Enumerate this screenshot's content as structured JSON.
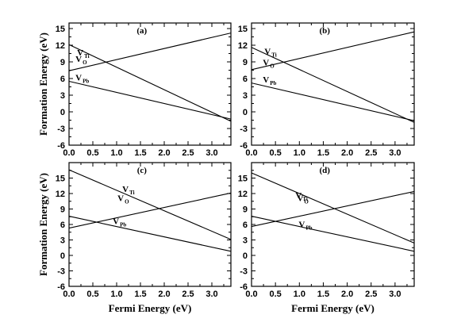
{
  "chart_data": [
    {
      "type": "line",
      "panel_label": "(a)",
      "xlabel": "",
      "ylabel": "Formation Energy (eV)",
      "xlim": [
        0,
        3.4
      ],
      "ylim": [
        -6,
        16
      ],
      "x_ticks": [
        "0.0",
        "0.5",
        "1.0",
        "1.5",
        "2.0",
        "2.5",
        "3.0"
      ],
      "y_ticks": [
        "-6",
        "-3",
        "0",
        "3",
        "6",
        "9",
        "12",
        "15"
      ],
      "grid": false,
      "series": [
        {
          "name": "V",
          "sub": "Ti",
          "x": [
            0,
            3.4
          ],
          "y": [
            12.1,
            -1.7
          ]
        },
        {
          "name": "V",
          "sub": "O",
          "x": [
            0,
            3.4
          ],
          "y": [
            7.4,
            14.2
          ]
        },
        {
          "name": "V",
          "sub": "Pb",
          "x": [
            0,
            3.4
          ],
          "y": [
            5.5,
            -1.3
          ]
        }
      ]
    },
    {
      "type": "line",
      "panel_label": "(b)",
      "xlabel": "",
      "ylabel": "",
      "xlim": [
        0,
        3.4
      ],
      "ylim": [
        -6,
        16
      ],
      "x_ticks": [
        "0.0",
        "0.5",
        "1.0",
        "1.5",
        "2.0",
        "2.5",
        "3.0"
      ],
      "y_ticks": [
        "-6",
        "-3",
        "0",
        "3",
        "6",
        "9",
        "12",
        "15"
      ],
      "grid": false,
      "series": [
        {
          "name": "V",
          "sub": "Ti",
          "x": [
            0,
            3.4
          ],
          "y": [
            11.6,
            -1.9
          ]
        },
        {
          "name": "V",
          "sub": "O",
          "x": [
            0,
            3.4
          ],
          "y": [
            7.6,
            14.4
          ]
        },
        {
          "name": "V",
          "sub": "Pb",
          "x": [
            0,
            3.4
          ],
          "y": [
            5.2,
            -1.6
          ]
        }
      ]
    },
    {
      "type": "line",
      "panel_label": "(c)",
      "xlabel": "Fermi Energy (eV)",
      "ylabel": "Formation Energy (eV)",
      "xlim": [
        0,
        3.4
      ],
      "ylim": [
        -6,
        18
      ],
      "x_ticks": [
        "0.0",
        "0.5",
        "1.0",
        "1.5",
        "2.0",
        "2.5",
        "3.0"
      ],
      "y_ticks": [
        "-6",
        "-3",
        "0",
        "3",
        "6",
        "9",
        "12",
        "15"
      ],
      "grid": false,
      "series": [
        {
          "name": "V",
          "sub": "Ti",
          "x": [
            0,
            3.4
          ],
          "y": [
            16.6,
            3.1
          ]
        },
        {
          "name": "V",
          "sub": "O",
          "x": [
            0,
            3.4
          ],
          "y": [
            5.3,
            12.1
          ]
        },
        {
          "name": "V",
          "sub": "Pb",
          "x": [
            0,
            3.4
          ],
          "y": [
            7.6,
            0.8
          ]
        }
      ]
    },
    {
      "type": "line",
      "panel_label": "(d)",
      "xlabel": "Fermi Energy (eV)",
      "ylabel": "",
      "xlim": [
        0,
        3.4
      ],
      "ylim": [
        -6,
        18
      ],
      "x_ticks": [
        "0.0",
        "0.5",
        "1.0",
        "1.5",
        "2.0",
        "2.5",
        "3.0"
      ],
      "y_ticks": [
        "-6",
        "-3",
        "0",
        "3",
        "6",
        "9",
        "12",
        "15"
      ],
      "grid": false,
      "series": [
        {
          "name": "V",
          "sub": "Ti",
          "x": [
            0,
            3.4
          ],
          "y": [
            16.0,
            2.4
          ]
        },
        {
          "name": "V",
          "sub": "O",
          "x": [
            0,
            3.4
          ],
          "y": [
            5.6,
            12.4
          ]
        },
        {
          "name": "V",
          "sub": "Pb",
          "x": [
            0,
            3.4
          ],
          "y": [
            7.6,
            0.8
          ]
        }
      ]
    }
  ]
}
